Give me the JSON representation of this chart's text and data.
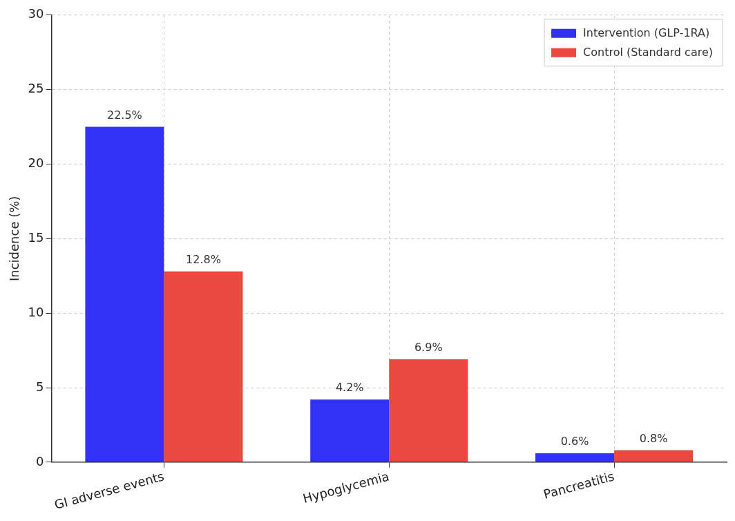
{
  "chart_data": {
    "type": "bar",
    "ylabel": "Incidence (%)",
    "categories": [
      "GI adverse events",
      "Hypoglycemia",
      "Pancreatitis"
    ],
    "series": [
      {
        "name": "Intervention (GLP-1RA)",
        "color": "#3232f5",
        "values": [
          22.5,
          4.2,
          0.6
        ],
        "value_labels": [
          "22.5%",
          "4.2%",
          "0.6%"
        ]
      },
      {
        "name": "Control (Standard care)",
        "color": "#e84a41",
        "values": [
          12.8,
          6.9,
          0.8
        ],
        "value_labels": [
          "12.8%",
          "6.9%",
          "0.8%"
        ]
      }
    ],
    "ylim": [
      0,
      30
    ],
    "yticks": [
      0,
      5,
      10,
      15,
      20,
      25,
      30
    ],
    "grid": true,
    "legend": "top right"
  }
}
